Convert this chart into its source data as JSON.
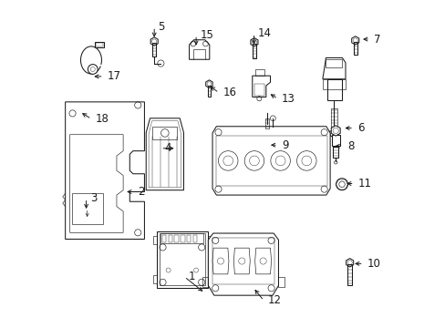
{
  "background_color": "#ffffff",
  "line_color": "#1a1a1a",
  "fig_width": 4.89,
  "fig_height": 3.6,
  "dpi": 100,
  "label_fontsize": 8.5,
  "labels": {
    "1": [
      0.445,
      0.105,
      0.382,
      0.155,
      "right"
    ],
    "2": [
      0.198,
      0.415,
      0.228,
      0.415,
      "right"
    ],
    "3": [
      0.082,
      0.355,
      0.082,
      0.395,
      "right"
    ],
    "4": [
      0.358,
      0.548,
      0.31,
      0.548,
      "right"
    ],
    "5": [
      0.29,
      0.88,
      0.29,
      0.92,
      "right"
    ],
    "6": [
      0.865,
      0.61,
      0.9,
      0.61,
      "right"
    ],
    "7": [
      0.92,
      0.882,
      0.95,
      0.882,
      "right"
    ],
    "8": [
      0.835,
      0.555,
      0.868,
      0.555,
      "right"
    ],
    "9": [
      0.638,
      0.558,
      0.668,
      0.558,
      "right"
    ],
    "10": [
      0.895,
      0.195,
      0.93,
      0.195,
      "right"
    ],
    "11": [
      0.87,
      0.44,
      0.902,
      0.44,
      "right"
    ],
    "12": [
      0.592,
      0.122,
      0.625,
      0.082,
      "right"
    ],
    "13": [
      0.638,
      0.718,
      0.668,
      0.7,
      "right"
    ],
    "14": [
      0.595,
      0.858,
      0.595,
      0.9,
      "right"
    ],
    "15": [
      0.418,
      0.855,
      0.418,
      0.895,
      "right"
    ],
    "16": [
      0.455,
      0.742,
      0.488,
      0.718,
      "right"
    ],
    "17": [
      0.098,
      0.768,
      0.135,
      0.768,
      "right"
    ],
    "18": [
      0.062,
      0.66,
      0.098,
      0.638,
      "right"
    ]
  }
}
